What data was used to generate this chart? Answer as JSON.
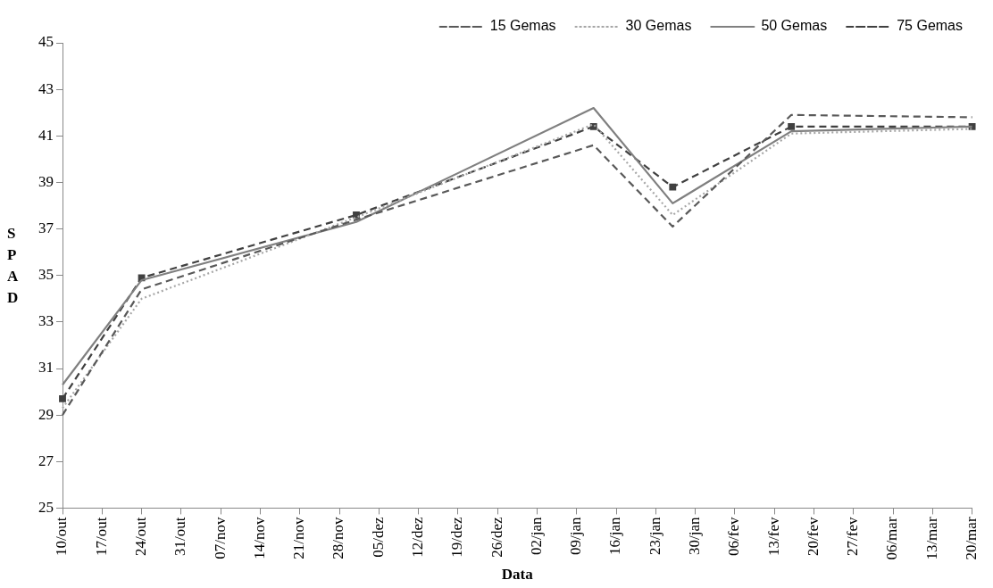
{
  "chart_data": {
    "type": "line",
    "xlabel": "Data",
    "ylabel": "SPAD",
    "categories": [
      "10/out",
      null,
      null,
      null,
      null,
      null,
      null,
      "17/out",
      null,
      null,
      null,
      null,
      null,
      null,
      "24/out",
      null,
      null,
      null,
      null,
      null,
      null,
      "31/out",
      null,
      null,
      null,
      null,
      null,
      null,
      "07/nov",
      null,
      null,
      null,
      null,
      null,
      null,
      "14/nov",
      null,
      null,
      null,
      null,
      null,
      null,
      "21/nov",
      null,
      null,
      null,
      null,
      null,
      null,
      "28/nov",
      null,
      null,
      null,
      null,
      null,
      null,
      "05/dez",
      null,
      null,
      null,
      null,
      null,
      null,
      "12/dez",
      null,
      null,
      null,
      null,
      null,
      null,
      "19/dez",
      null,
      null,
      null,
      null,
      null,
      null,
      "26/dez",
      null,
      null,
      null,
      null,
      null,
      null,
      "02/jan",
      null,
      null,
      null,
      null,
      null,
      null,
      "09/jan",
      null,
      null,
      null,
      null,
      null,
      null,
      "16/jan",
      null,
      null,
      null,
      null,
      null,
      null,
      "23/jan",
      null,
      null,
      null,
      null,
      null,
      null,
      "30/jan",
      null,
      null,
      null,
      null,
      null,
      null,
      "06/fev",
      null,
      null,
      null,
      null,
      null,
      null,
      "13/fev",
      null,
      null,
      null,
      null,
      null,
      null,
      "20/fev",
      null,
      null,
      null,
      null,
      null,
      null,
      "27/fev",
      null,
      null,
      null,
      null,
      null,
      null,
      "06/mar",
      null,
      null,
      null,
      null,
      null,
      null,
      "13/mar",
      null,
      null,
      null,
      null,
      null,
      null,
      "20/mar"
    ],
    "series": [
      {
        "name": "15 Gemas",
        "color": "#595959",
        "line_style": "dashed",
        "marker": "none",
        "values": [
          29.0,
          null,
          null,
          null,
          null,
          null,
          null,
          null,
          null,
          null,
          null,
          null,
          null,
          null,
          34.4,
          null,
          null,
          null,
          null,
          null,
          null,
          null,
          null,
          null,
          null,
          null,
          null,
          null,
          null,
          null,
          null,
          null,
          null,
          null,
          null,
          null,
          null,
          null,
          null,
          null,
          null,
          null,
          null,
          null,
          null,
          null,
          null,
          null,
          null,
          null,
          null,
          null,
          37.4,
          null,
          null,
          null,
          null,
          null,
          null,
          null,
          null,
          null,
          null,
          null,
          null,
          null,
          null,
          null,
          null,
          null,
          null,
          null,
          null,
          null,
          null,
          null,
          null,
          null,
          null,
          null,
          null,
          null,
          null,
          null,
          null,
          null,
          null,
          null,
          null,
          null,
          null,
          null,
          null,
          null,
          40.6,
          null,
          null,
          null,
          null,
          null,
          null,
          null,
          null,
          null,
          null,
          null,
          null,
          null,
          37.1,
          null,
          null,
          null,
          null,
          null,
          null,
          null,
          null,
          null,
          null,
          null,
          null,
          null,
          null,
          null,
          null,
          null,
          null,
          null,
          null,
          41.9,
          null,
          null,
          null,
          null,
          null,
          null,
          null,
          null,
          null,
          null,
          null,
          null,
          null,
          null,
          null,
          null,
          null,
          null,
          null,
          null,
          null,
          null,
          null,
          null,
          null,
          null,
          null,
          null,
          null,
          null,
          null,
          41.8
        ]
      },
      {
        "name": "30 Gemas",
        "color": "#a6a6a6",
        "line_style": "dotted",
        "marker": "none",
        "values": [
          29.3,
          null,
          null,
          null,
          null,
          null,
          null,
          null,
          null,
          null,
          null,
          null,
          null,
          null,
          34.0,
          null,
          null,
          null,
          null,
          null,
          null,
          null,
          null,
          null,
          null,
          null,
          null,
          null,
          null,
          null,
          null,
          null,
          null,
          null,
          null,
          null,
          null,
          null,
          null,
          null,
          null,
          null,
          null,
          null,
          null,
          null,
          null,
          null,
          null,
          null,
          null,
          null,
          37.5,
          null,
          null,
          null,
          null,
          null,
          null,
          null,
          null,
          null,
          null,
          null,
          null,
          null,
          null,
          null,
          null,
          null,
          null,
          null,
          null,
          null,
          null,
          null,
          null,
          null,
          null,
          null,
          null,
          null,
          null,
          null,
          null,
          null,
          null,
          null,
          null,
          null,
          null,
          null,
          null,
          null,
          41.5,
          null,
          null,
          null,
          null,
          null,
          null,
          null,
          null,
          null,
          null,
          null,
          null,
          null,
          37.6,
          null,
          null,
          null,
          null,
          null,
          null,
          null,
          null,
          null,
          null,
          null,
          null,
          null,
          null,
          null,
          null,
          null,
          null,
          null,
          null,
          41.1,
          null,
          null,
          null,
          null,
          null,
          null,
          null,
          null,
          null,
          null,
          null,
          null,
          null,
          null,
          null,
          null,
          null,
          null,
          null,
          null,
          null,
          null,
          null,
          null,
          null,
          null,
          null,
          null,
          null,
          null,
          null,
          41.3
        ]
      },
      {
        "name": "50 Gemas",
        "color": "#808080",
        "line_style": "solid",
        "marker": "none",
        "values": [
          30.3,
          null,
          null,
          null,
          null,
          null,
          null,
          null,
          null,
          null,
          null,
          null,
          null,
          null,
          34.8,
          null,
          null,
          null,
          null,
          null,
          null,
          null,
          null,
          null,
          null,
          null,
          null,
          null,
          null,
          null,
          null,
          null,
          null,
          null,
          null,
          null,
          null,
          null,
          null,
          null,
          null,
          null,
          null,
          null,
          null,
          null,
          null,
          null,
          null,
          null,
          null,
          null,
          37.3,
          null,
          null,
          null,
          null,
          null,
          null,
          null,
          null,
          null,
          null,
          null,
          null,
          null,
          null,
          null,
          null,
          null,
          null,
          null,
          null,
          null,
          null,
          null,
          null,
          null,
          null,
          null,
          null,
          null,
          null,
          null,
          null,
          null,
          null,
          null,
          null,
          null,
          null,
          null,
          null,
          null,
          42.2,
          null,
          null,
          null,
          null,
          null,
          null,
          null,
          null,
          null,
          null,
          null,
          null,
          null,
          38.1,
          null,
          null,
          null,
          null,
          null,
          null,
          null,
          null,
          null,
          null,
          null,
          null,
          null,
          null,
          null,
          null,
          null,
          null,
          null,
          null,
          41.2,
          null,
          null,
          null,
          null,
          null,
          null,
          null,
          null,
          null,
          null,
          null,
          null,
          null,
          null,
          null,
          null,
          null,
          null,
          null,
          null,
          null,
          null,
          null,
          null,
          null,
          null,
          null,
          null,
          null,
          null,
          null,
          41.4
        ]
      },
      {
        "name": "75 Gemas",
        "color": "#404040",
        "line_style": "dashed",
        "marker": "square",
        "values": [
          29.7,
          null,
          null,
          null,
          null,
          null,
          null,
          null,
          null,
          null,
          null,
          null,
          null,
          null,
          34.9,
          null,
          null,
          null,
          null,
          null,
          null,
          null,
          null,
          null,
          null,
          null,
          null,
          null,
          null,
          null,
          null,
          null,
          null,
          null,
          null,
          null,
          null,
          null,
          null,
          null,
          null,
          null,
          null,
          null,
          null,
          null,
          null,
          null,
          null,
          null,
          null,
          null,
          37.6,
          null,
          null,
          null,
          null,
          null,
          null,
          null,
          null,
          null,
          null,
          null,
          null,
          null,
          null,
          null,
          null,
          null,
          null,
          null,
          null,
          null,
          null,
          null,
          null,
          null,
          null,
          null,
          null,
          null,
          null,
          null,
          null,
          null,
          null,
          null,
          null,
          null,
          null,
          null,
          null,
          null,
          41.4,
          null,
          null,
          null,
          null,
          null,
          null,
          null,
          null,
          null,
          null,
          null,
          null,
          null,
          38.8,
          null,
          null,
          null,
          null,
          null,
          null,
          null,
          null,
          null,
          null,
          null,
          null,
          null,
          null,
          null,
          null,
          null,
          null,
          null,
          null,
          41.4,
          null,
          null,
          null,
          null,
          null,
          null,
          null,
          null,
          null,
          null,
          null,
          null,
          null,
          null,
          null,
          null,
          null,
          null,
          null,
          null,
          null,
          null,
          null,
          null,
          null,
          null,
          null,
          null,
          null,
          null,
          null,
          41.4
        ]
      }
    ],
    "ylim": [
      25,
      45
    ],
    "yticks": [
      25,
      27,
      29,
      31,
      33,
      35,
      37,
      39,
      41,
      43,
      45
    ],
    "grid": false,
    "legend": "top right"
  }
}
